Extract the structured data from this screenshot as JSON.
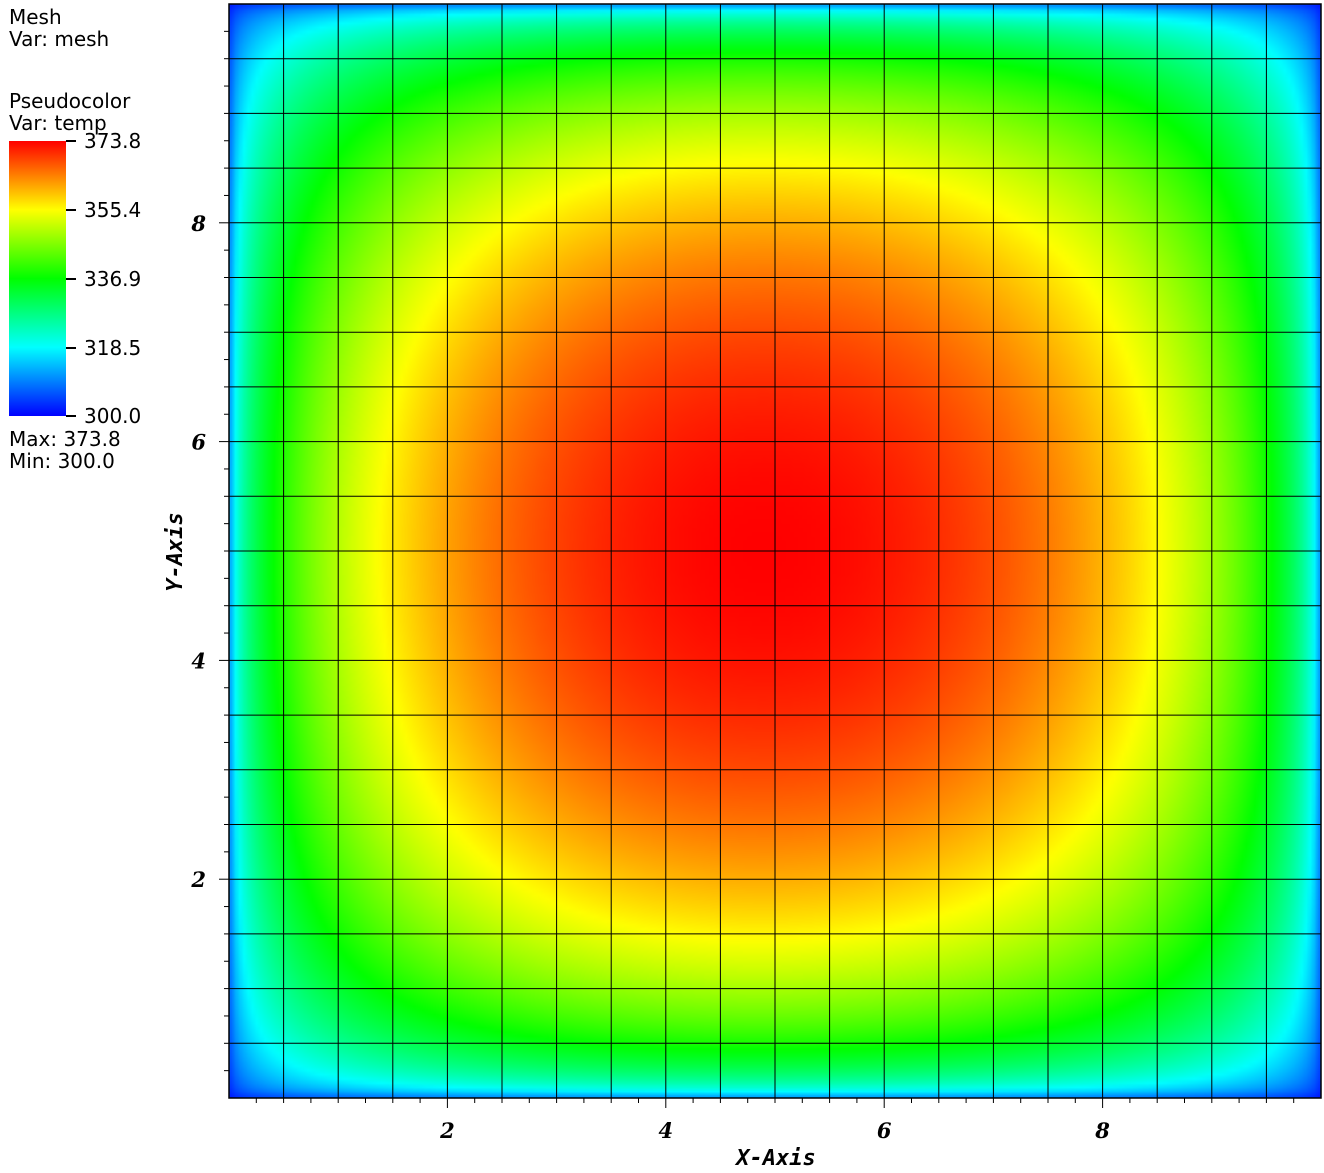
{
  "legend": {
    "mesh": {
      "title": "Mesh",
      "var": "Var: mesh"
    },
    "pseudocolor": {
      "title": "Pseudocolor",
      "var": "Var: temp"
    },
    "colorbar_labels": [
      "373.8",
      "355.4",
      "336.9",
      "318.5",
      "300.0"
    ],
    "max_text": "Max:  373.8",
    "min_text": "Min:  300.0",
    "colors": [
      "#ff0000",
      "#ffff00",
      "#00ff00",
      "#00ffff",
      "#0000ff"
    ]
  },
  "chart_data": {
    "type": "heatmap",
    "variable": "temp",
    "value_range": [
      300.0,
      373.8
    ],
    "colormap": [
      "#0000ff",
      "#00ffff",
      "#00ff00",
      "#ffff00",
      "#ff0000"
    ],
    "peak_center": [
      4.9,
      5.0
    ],
    "xlim": [
      0,
      10
    ],
    "ylim": [
      0,
      10
    ],
    "mesh_cells": [
      20,
      20
    ],
    "xlabel": "X-Axis",
    "ylabel": "Y-Axis",
    "x_ticks": [
      2,
      4,
      6,
      8
    ],
    "y_ticks": [
      2,
      4,
      6,
      8
    ],
    "x_tick_labels": [
      "2",
      "4",
      "6",
      "8"
    ],
    "y_tick_labels": [
      "2",
      "4",
      "6",
      "8"
    ]
  }
}
